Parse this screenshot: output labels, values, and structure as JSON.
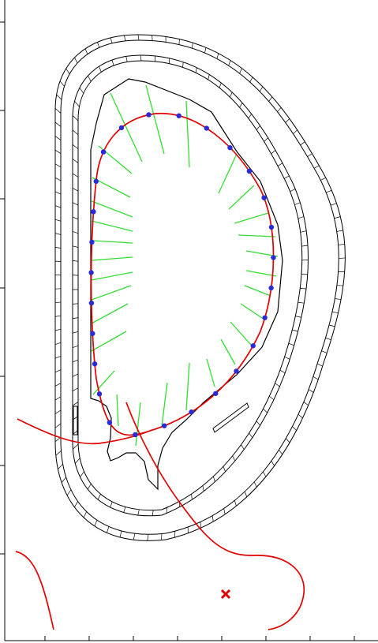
{
  "colors": {
    "background": "#ffffff",
    "frame": "#000000",
    "separatrix": "#e00000",
    "sightlines": "#33dd33",
    "probe_points": "#2a2ad8",
    "xpoint_marker": "#e00000"
  },
  "icons": {
    "xpoint": "cross-icon"
  },
  "boundary_points": {
    "count": 27
  }
}
